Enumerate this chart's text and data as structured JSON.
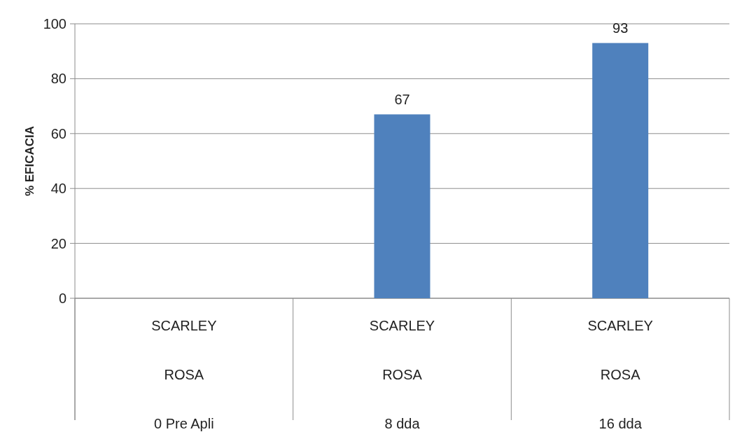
{
  "chart_data": {
    "type": "bar",
    "ylabel": "% EFICACIA",
    "categories": [
      "SCARLEY\nROSA\n0 Pre Apli",
      "SCARLEY\nROSA\n8 dda",
      "SCARLEY\nROSA\n16 dda"
    ],
    "values": [
      0,
      67,
      93
    ],
    "value_labels": [
      null,
      "67",
      "93"
    ],
    "color": "#4f81bd",
    "ylim": [
      0,
      100
    ],
    "yticks": [
      0,
      20,
      40,
      60,
      80,
      100
    ],
    "grid": "y"
  }
}
